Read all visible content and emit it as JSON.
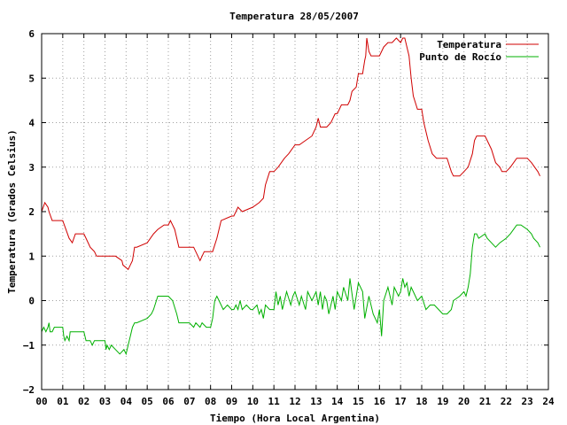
{
  "chart_data": {
    "type": "line",
    "title": "Temperatura 28/05/2007",
    "xlabel": "Tiempo (Hora Local Argentina)",
    "ylabel": "Temperatura (Grados Celsius)",
    "xlim": [
      0,
      24
    ],
    "ylim": [
      -2,
      6
    ],
    "x_ticks": [
      "00",
      "01",
      "02",
      "03",
      "04",
      "05",
      "06",
      "07",
      "08",
      "09",
      "10",
      "11",
      "12",
      "13",
      "14",
      "15",
      "16",
      "17",
      "18",
      "19",
      "20",
      "21",
      "22",
      "23",
      "24"
    ],
    "y_ticks": [
      -2,
      -1,
      0,
      1,
      2,
      3,
      4,
      5,
      6
    ],
    "grid": true,
    "legend_position": "top-right",
    "series": [
      {
        "name": "Temperatura",
        "color": "#d00000",
        "x": [
          0.0,
          0.15,
          0.3,
          0.35,
          0.5,
          0.6,
          1.0,
          1.15,
          1.3,
          1.45,
          1.6,
          1.75,
          2.0,
          2.1,
          2.3,
          2.5,
          2.6,
          3.0,
          3.5,
          3.8,
          3.85,
          4.1,
          4.2,
          4.3,
          4.4,
          4.5,
          5.0,
          5.3,
          5.5,
          5.8,
          6.0,
          6.1,
          6.3,
          6.5,
          7.0,
          7.2,
          7.4,
          7.5,
          7.7,
          8.0,
          8.1,
          8.3,
          8.5,
          9.0,
          9.1,
          9.2,
          9.3,
          9.5,
          10.0,
          10.3,
          10.5,
          10.6,
          10.8,
          11.0,
          11.2,
          11.5,
          11.7,
          12.0,
          12.2,
          12.5,
          12.8,
          13.0,
          13.05,
          13.1,
          13.2,
          13.5,
          13.7,
          13.9,
          14.0,
          14.2,
          14.5,
          14.6,
          14.7,
          14.9,
          15.0,
          15.2,
          15.3,
          15.35,
          15.4,
          15.5,
          15.6,
          15.8,
          16.0,
          16.2,
          16.4,
          16.5,
          16.6,
          16.8,
          17.0,
          17.1,
          17.2,
          17.3,
          17.4,
          17.5,
          17.6,
          17.8,
          17.9,
          18.0,
          18.1,
          18.3,
          18.5,
          18.7,
          19.0,
          19.2,
          19.4,
          19.5,
          19.8,
          20.0,
          20.2,
          20.4,
          20.5,
          20.6,
          20.7,
          20.8,
          21.0,
          21.1,
          21.3,
          21.5,
          21.7,
          21.8,
          22.0,
          22.2,
          22.5,
          22.8,
          23.0,
          23.2,
          23.35,
          23.5,
          23.6
        ],
        "values": [
          2.0,
          2.2,
          2.1,
          2.0,
          1.8,
          1.8,
          1.8,
          1.6,
          1.4,
          1.3,
          1.5,
          1.5,
          1.5,
          1.4,
          1.2,
          1.1,
          1.0,
          1.0,
          1.0,
          0.9,
          0.8,
          0.7,
          0.8,
          0.9,
          1.2,
          1.2,
          1.3,
          1.5,
          1.6,
          1.7,
          1.7,
          1.8,
          1.6,
          1.2,
          1.2,
          1.2,
          1.0,
          0.9,
          1.1,
          1.1,
          1.1,
          1.4,
          1.8,
          1.9,
          1.9,
          2.0,
          2.1,
          2.0,
          2.1,
          2.2,
          2.3,
          2.6,
          2.9,
          2.9,
          3.0,
          3.2,
          3.3,
          3.5,
          3.5,
          3.6,
          3.7,
          3.9,
          4.0,
          4.1,
          3.9,
          3.9,
          4.0,
          4.2,
          4.2,
          4.4,
          4.4,
          4.5,
          4.7,
          4.8,
          5.1,
          5.1,
          5.4,
          5.5,
          5.9,
          5.6,
          5.5,
          5.5,
          5.5,
          5.7,
          5.8,
          5.8,
          5.8,
          5.9,
          5.8,
          5.9,
          5.9,
          5.7,
          5.5,
          5.0,
          4.6,
          4.3,
          4.3,
          4.3,
          4.0,
          3.6,
          3.3,
          3.2,
          3.2,
          3.2,
          2.9,
          2.8,
          2.8,
          2.9,
          3.0,
          3.3,
          3.6,
          3.7,
          3.7,
          3.7,
          3.7,
          3.6,
          3.4,
          3.1,
          3.0,
          2.9,
          2.9,
          3.0,
          3.2,
          3.2,
          3.2,
          3.1,
          3.0,
          2.9,
          2.8
        ]
      },
      {
        "name": "Punto de Rocío",
        "color": "#00b000",
        "x": [
          0.0,
          0.1,
          0.2,
          0.3,
          0.35,
          0.4,
          0.5,
          0.6,
          1.0,
          1.05,
          1.1,
          1.2,
          1.3,
          1.35,
          1.5,
          2.0,
          2.1,
          2.3,
          2.4,
          2.5,
          2.6,
          3.0,
          3.05,
          3.1,
          3.2,
          3.3,
          3.5,
          3.7,
          3.9,
          4.0,
          4.1,
          4.2,
          4.3,
          4.4,
          4.5,
          5.0,
          5.2,
          5.3,
          5.5,
          5.7,
          6.0,
          6.2,
          6.4,
          6.5,
          6.7,
          7.0,
          7.2,
          7.3,
          7.5,
          7.6,
          7.8,
          8.0,
          8.1,
          8.2,
          8.3,
          8.5,
          8.6,
          8.8,
          9.0,
          9.1,
          9.2,
          9.3,
          9.4,
          9.5,
          9.7,
          9.9,
          10.0,
          10.2,
          10.3,
          10.4,
          10.5,
          10.6,
          10.8,
          11.0,
          11.1,
          11.2,
          11.3,
          11.4,
          11.5,
          11.6,
          11.8,
          11.9,
          12.0,
          12.2,
          12.3,
          12.5,
          12.6,
          12.8,
          13.0,
          13.1,
          13.2,
          13.3,
          13.4,
          13.5,
          13.6,
          13.8,
          13.9,
          14.0,
          14.2,
          14.3,
          14.5,
          14.6,
          14.8,
          15.0,
          15.1,
          15.2,
          15.3,
          15.5,
          15.7,
          15.9,
          16.0,
          16.1,
          16.2,
          16.4,
          16.6,
          16.7,
          16.9,
          17.0,
          17.1,
          17.2,
          17.3,
          17.4,
          17.5,
          17.6,
          17.8,
          18.0,
          18.2,
          18.4,
          18.6,
          19.0,
          19.2,
          19.4,
          19.5,
          19.8,
          20.0,
          20.1,
          20.2,
          20.3,
          20.4,
          20.5,
          20.6,
          20.7,
          21.0,
          21.1,
          21.3,
          21.5,
          21.7,
          22.0,
          22.2,
          22.5,
          22.7,
          23.0,
          23.2,
          23.3,
          23.5,
          23.6
        ],
        "values": [
          -0.7,
          -0.6,
          -0.7,
          -0.6,
          -0.5,
          -0.7,
          -0.7,
          -0.6,
          -0.6,
          -0.8,
          -0.9,
          -0.8,
          -0.9,
          -0.7,
          -0.7,
          -0.7,
          -0.9,
          -0.9,
          -1.0,
          -0.9,
          -0.9,
          -0.9,
          -1.1,
          -1.0,
          -1.1,
          -1.0,
          -1.1,
          -1.2,
          -1.1,
          -1.2,
          -1.0,
          -0.8,
          -0.6,
          -0.5,
          -0.5,
          -0.4,
          -0.3,
          -0.2,
          0.1,
          0.1,
          0.1,
          0.0,
          -0.3,
          -0.5,
          -0.5,
          -0.5,
          -0.6,
          -0.5,
          -0.6,
          -0.5,
          -0.6,
          -0.6,
          -0.4,
          0.0,
          0.1,
          -0.1,
          -0.2,
          -0.1,
          -0.2,
          -0.2,
          -0.1,
          -0.2,
          0.0,
          -0.2,
          -0.1,
          -0.2,
          -0.2,
          -0.1,
          -0.3,
          -0.2,
          -0.4,
          -0.1,
          -0.2,
          -0.2,
          0.2,
          -0.1,
          0.1,
          -0.2,
          0.0,
          0.2,
          -0.1,
          0.1,
          0.2,
          -0.1,
          0.1,
          -0.2,
          0.2,
          0.0,
          0.2,
          -0.1,
          0.2,
          -0.2,
          0.1,
          0.0,
          -0.3,
          0.1,
          -0.2,
          0.2,
          0.0,
          0.3,
          0.0,
          0.5,
          -0.2,
          0.4,
          0.3,
          0.2,
          -0.4,
          0.1,
          -0.3,
          -0.5,
          -0.2,
          -0.8,
          0.0,
          0.3,
          -0.1,
          0.3,
          0.1,
          0.2,
          0.5,
          0.3,
          0.4,
          0.1,
          0.3,
          0.2,
          0.0,
          0.1,
          -0.2,
          -0.1,
          -0.1,
          -0.3,
          -0.3,
          -0.2,
          0.0,
          0.1,
          0.2,
          0.1,
          0.3,
          0.6,
          1.2,
          1.5,
          1.5,
          1.4,
          1.5,
          1.4,
          1.3,
          1.2,
          1.3,
          1.4,
          1.5,
          1.7,
          1.7,
          1.6,
          1.5,
          1.4,
          1.3,
          1.2
        ]
      }
    ]
  }
}
